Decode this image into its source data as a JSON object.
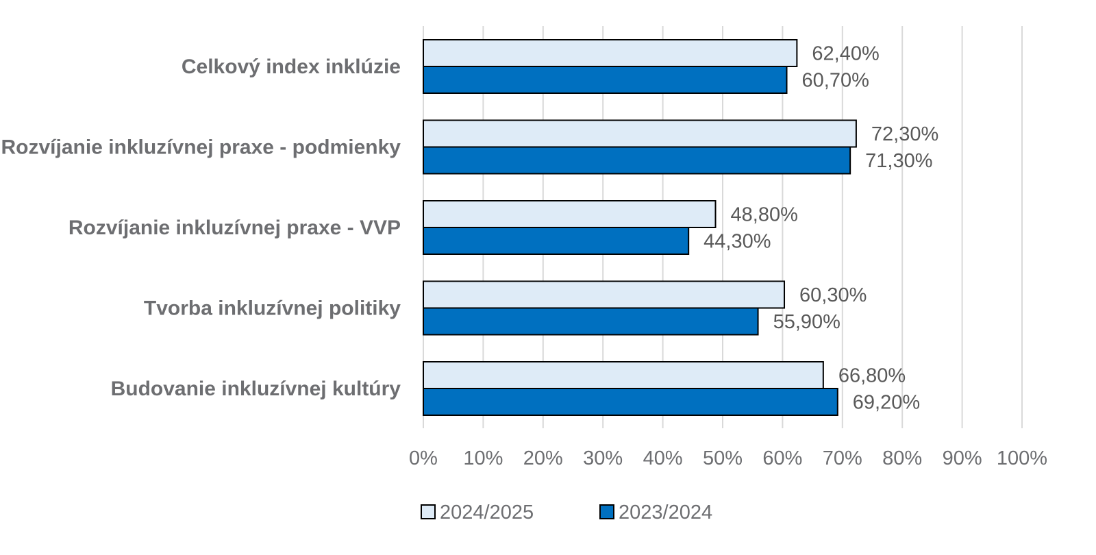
{
  "chart_data": {
    "type": "bar",
    "orientation": "horizontal",
    "categories": [
      "Celkový index inklúzie",
      "Rozvíjanie inkluzívnej praxe - podmienky",
      "Rozvíjanie inkluzívnej praxe - VVP",
      "Tvorba inkluzívnej politiky",
      "Budovanie inkluzívnej kultúry"
    ],
    "series": [
      {
        "name": "2024/2025",
        "color": "#deebf7",
        "values": [
          62.4,
          72.3,
          48.8,
          60.3,
          66.8
        ],
        "labels": [
          "62,40%",
          "72,30%",
          "48,80%",
          "60,30%",
          "66,80%"
        ]
      },
      {
        "name": "2023/2024",
        "color": "#0070c0",
        "values": [
          60.7,
          71.3,
          44.3,
          55.9,
          69.2
        ],
        "labels": [
          "60,70%",
          "71,30%",
          "44,30%",
          "55,90%",
          "69,20%"
        ]
      }
    ],
    "xlim": [
      0,
      100
    ],
    "xticks": [
      "0%",
      "10%",
      "20%",
      "30%",
      "40%",
      "50%",
      "60%",
      "70%",
      "80%",
      "90%",
      "100%"
    ],
    "grid": true,
    "legend_position": "bottom"
  }
}
